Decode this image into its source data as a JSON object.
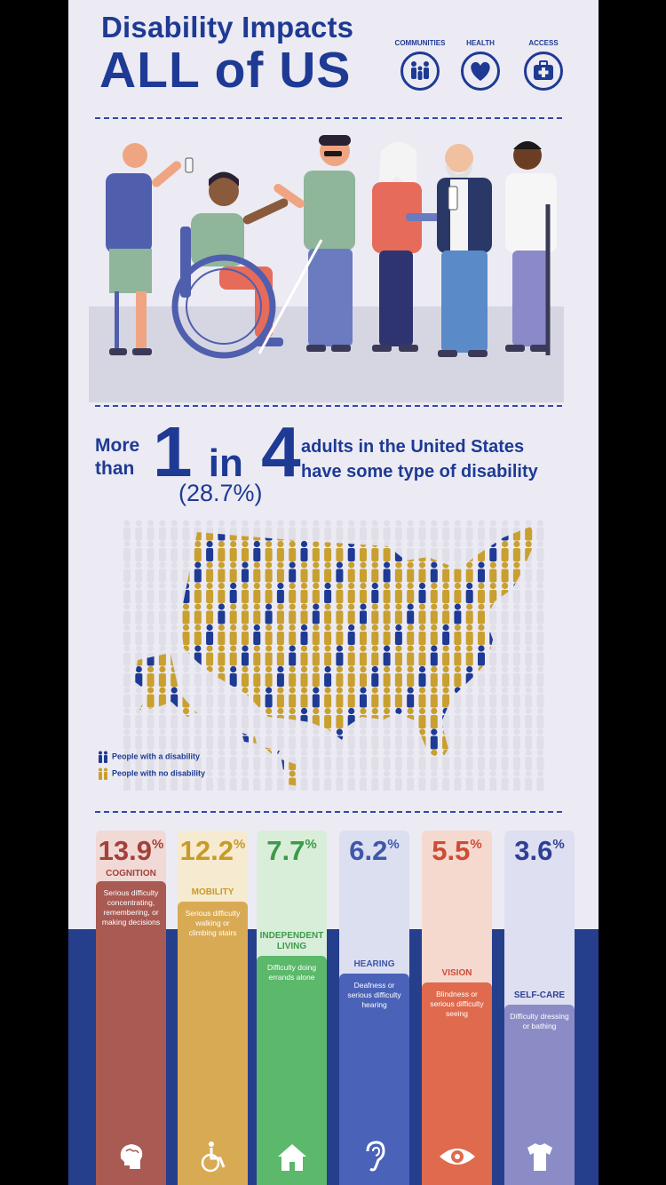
{
  "header": {
    "title_line1": "Disability Impacts",
    "title_line2": "ALL of US",
    "icons": [
      {
        "label": "COMMUNITIES",
        "icon": "people-group-icon"
      },
      {
        "label": "HEALTH",
        "icon": "heart-icon"
      },
      {
        "label": "ACCESS",
        "icon": "medical-kit-icon"
      }
    ]
  },
  "stat": {
    "prefix": "More\nthan",
    "ratio_num": "1",
    "ratio_in": "in",
    "ratio_den": "4",
    "percent": "(28.7%)",
    "suffix": "adults in the United States\nhave some type of disability"
  },
  "map_legend": {
    "with": "People with a disability",
    "without": "People with no disability"
  },
  "colors": {
    "navy": "#1e3a94",
    "gold": "#c9a02f",
    "band": "#253f8d"
  },
  "chart_data": {
    "type": "bar",
    "categories": [
      "COGNITION",
      "MOBILITY",
      "INDEPENDENT LIVING",
      "HEARING",
      "VISION",
      "SELF-CARE"
    ],
    "values": [
      13.9,
      12.2,
      7.7,
      6.2,
      5.5,
      3.6
    ],
    "value_labels": [
      "13.9",
      "12.2",
      "7.7",
      "6.2",
      "5.5",
      "3.6"
    ],
    "unit": "%",
    "descriptions": [
      "Serious difficulty concentrating, remembering, or making decisions",
      "Serious difficulty walking or climbing stairs",
      "Difficulty doing errands alone",
      "Deafness or serious difficulty hearing",
      "Blindness or serious difficulty seeing",
      "Difficulty dressing or bathing"
    ],
    "icons": [
      "brain-icon",
      "wheelchair-icon",
      "house-icon",
      "ear-icon",
      "eye-icon",
      "shirt-icon"
    ],
    "colors": [
      "#a95a52",
      "#d9aa54",
      "#5cb86a",
      "#4a62b8",
      "#df6a4d",
      "#8b8cc6"
    ],
    "light_colors": [
      "#f1d9d6",
      "#f6ead0",
      "#d9eed9",
      "#dcdff0",
      "#f5d9cf",
      "#dedff0"
    ],
    "text_colors": [
      "#a3413a",
      "#c99a27",
      "#3c9a4a",
      "#3e57aa",
      "#cf4b34",
      "#2f3f94"
    ]
  }
}
